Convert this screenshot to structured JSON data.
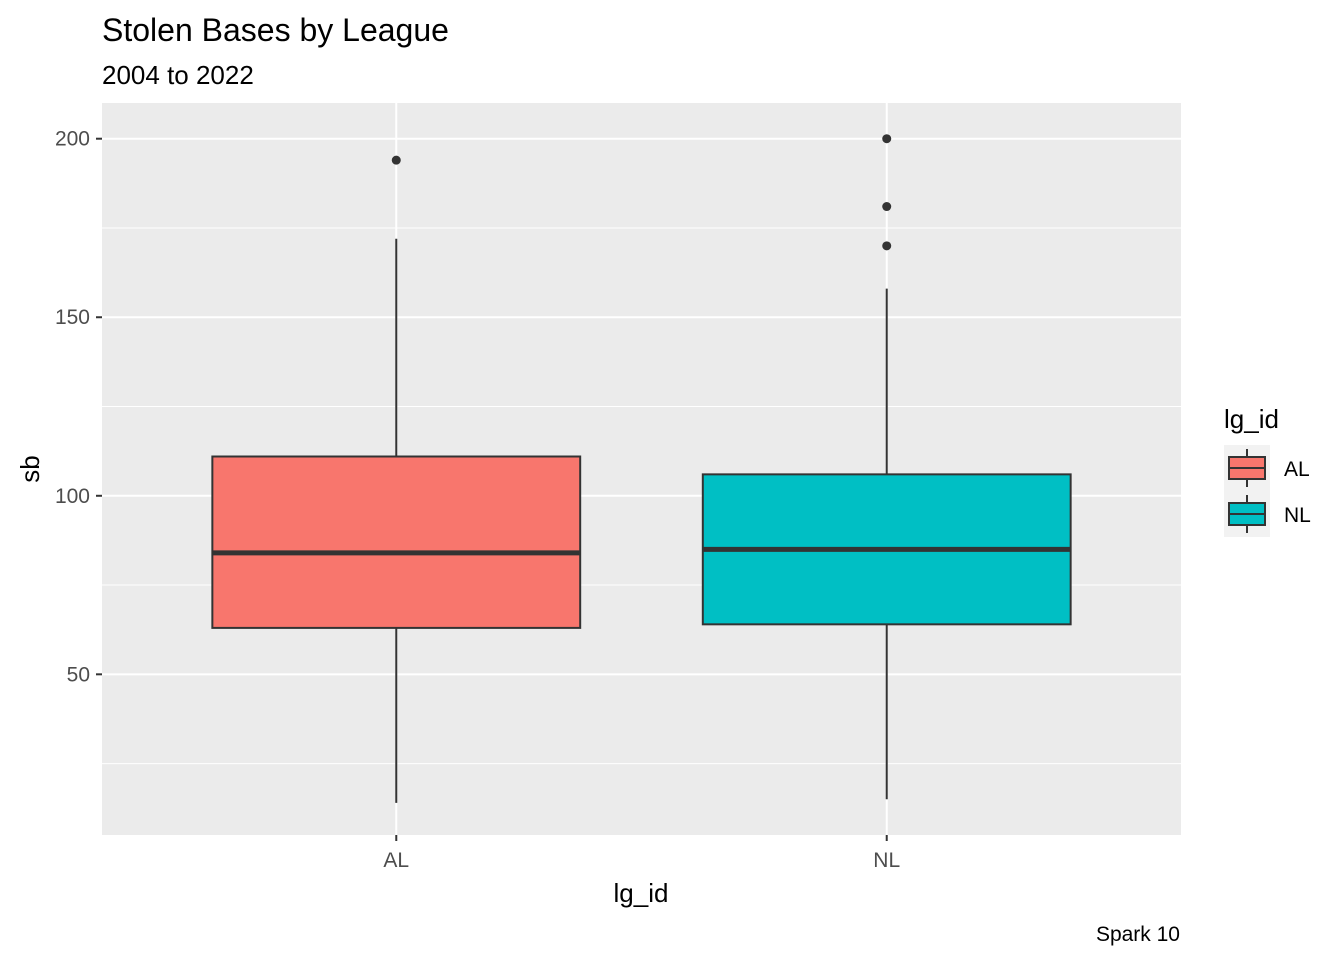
{
  "chart_data": {
    "type": "boxplot",
    "title": "Stolen Bases by League",
    "subtitle": "2004 to 2022",
    "xlabel": "lg_id",
    "ylabel": "sb",
    "caption": "Spark 10",
    "categories": [
      "AL",
      "NL"
    ],
    "ylim": [
      5,
      210
    ],
    "yticks": [
      50,
      100,
      150,
      200
    ],
    "grid": true,
    "legend": {
      "title": "lg_id",
      "position": "right",
      "entries": [
        "AL",
        "NL"
      ]
    },
    "colors": {
      "AL": "#F8766D",
      "NL": "#00BFC4"
    },
    "boxes": [
      {
        "category": "AL",
        "lower_whisker": 14,
        "q1": 63,
        "median": 84,
        "q3": 111,
        "upper_whisker": 172,
        "outliers": [
          194
        ]
      },
      {
        "category": "NL",
        "lower_whisker": 15,
        "q1": 64,
        "median": 85,
        "q3": 106,
        "upper_whisker": 158,
        "outliers": [
          170,
          181,
          200
        ]
      }
    ]
  }
}
